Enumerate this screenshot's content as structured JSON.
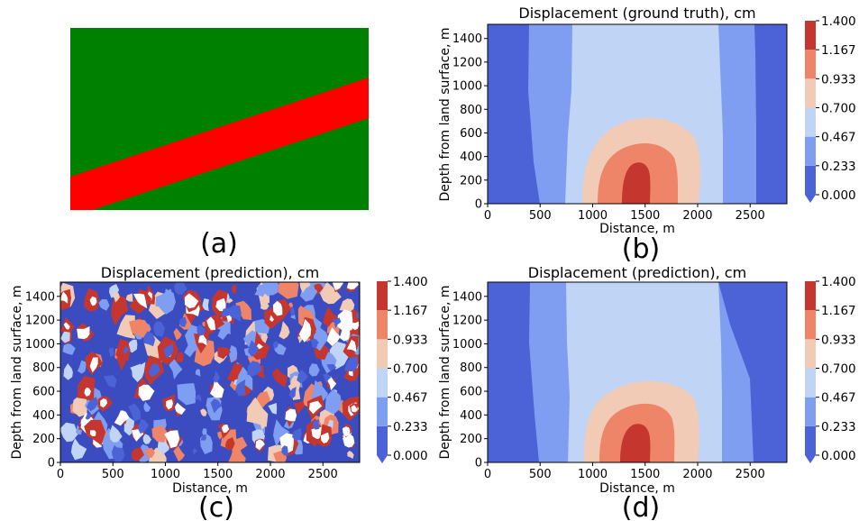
{
  "colors": {
    "green": "#008000",
    "red": "#ff0000",
    "levels": [
      "#4b63d6",
      "#7f9ef2",
      "#c0d4f5",
      "#f2cbb7",
      "#ee8468",
      "#c5362f"
    ],
    "noise_base": "#3b4cc0",
    "noise_white": "#ffffff"
  },
  "panels": [
    {
      "label": "(a)"
    },
    {
      "label": "(b)"
    },
    {
      "label": "(c)"
    },
    {
      "label": "(d)"
    }
  ],
  "chart_data": [
    {
      "panel": "(a)",
      "type": "other",
      "description_elements": [
        "green background",
        "red diagonal band"
      ]
    },
    {
      "panel": "(b)",
      "type": "heatmap",
      "title": "Displacement (ground truth), cm",
      "xlabel": "Distance, m",
      "ylabel": "Depth from land surface, m",
      "xlim": [
        0,
        2850
      ],
      "ylim": [
        0,
        1520
      ],
      "xticks": [
        0,
        500,
        1000,
        1500,
        2000,
        2500
      ],
      "yticks": [
        0,
        200,
        400,
        600,
        800,
        1000,
        1200,
        1400
      ],
      "colorbar_ticks": [
        "0.000",
        "0.233",
        "0.467",
        "0.700",
        "0.933",
        "1.167",
        "1.400"
      ],
      "contours": [
        {
          "level_range": [
            0.233,
            0.467
          ],
          "x_left": 480,
          "x_right": 2580
        },
        {
          "level_range": [
            0.467,
            0.7
          ],
          "x_left": 750,
          "x_right": 2280
        },
        {
          "level_range": [
            0.7,
            0.933
          ],
          "center_x": 1500,
          "top": 720
        },
        {
          "level_range": [
            0.933,
            1.167
          ],
          "center_x": 1480,
          "top": 580
        },
        {
          "level_range": [
            1.167,
            1.4
          ],
          "center_x": 1420,
          "top": 350
        }
      ]
    },
    {
      "panel": "(c)",
      "type": "heatmap",
      "title": "Displacement (prediction), cm",
      "xlabel": "Distance, m",
      "ylabel": "Depth from land surface, m",
      "xlim": [
        0,
        2850
      ],
      "ylim": [
        0,
        1520
      ],
      "xticks": [
        0,
        500,
        1000,
        1500,
        2000,
        2500
      ],
      "yticks": [
        0,
        200,
        400,
        600,
        800,
        1000,
        1200,
        1400
      ],
      "colorbar_ticks": [
        "0.000",
        "0.233",
        "0.467",
        "0.700",
        "0.933",
        "1.167",
        "1.400"
      ],
      "note": "noisy field with scattered high-value patches"
    },
    {
      "panel": "(d)",
      "type": "heatmap",
      "title": "Displacement (prediction), cm",
      "xlabel": "Distance, m",
      "ylabel": "Depth from land surface, m",
      "xlim": [
        0,
        2850
      ],
      "ylim": [
        0,
        1520
      ],
      "xticks": [
        0,
        500,
        1000,
        1500,
        2000,
        2500
      ],
      "yticks": [
        0,
        200,
        400,
        600,
        800,
        1000,
        1200,
        1400
      ],
      "colorbar_ticks": [
        "0.000",
        "0.233",
        "0.467",
        "0.700",
        "0.933",
        "1.167",
        "1.400"
      ],
      "contours": [
        {
          "level_range": [
            0.233,
            0.467
          ],
          "x_left": 480,
          "x_right": 2580
        },
        {
          "level_range": [
            0.467,
            0.7
          ],
          "x_left": 760,
          "x_right": 2270
        },
        {
          "level_range": [
            0.7,
            0.933
          ],
          "center_x": 1450,
          "top": 700
        },
        {
          "level_range": [
            0.933,
            1.167
          ],
          "center_x": 1430,
          "top": 600
        },
        {
          "level_range": [
            1.167,
            1.4
          ],
          "center_x": 1400,
          "top": 330
        }
      ]
    }
  ]
}
